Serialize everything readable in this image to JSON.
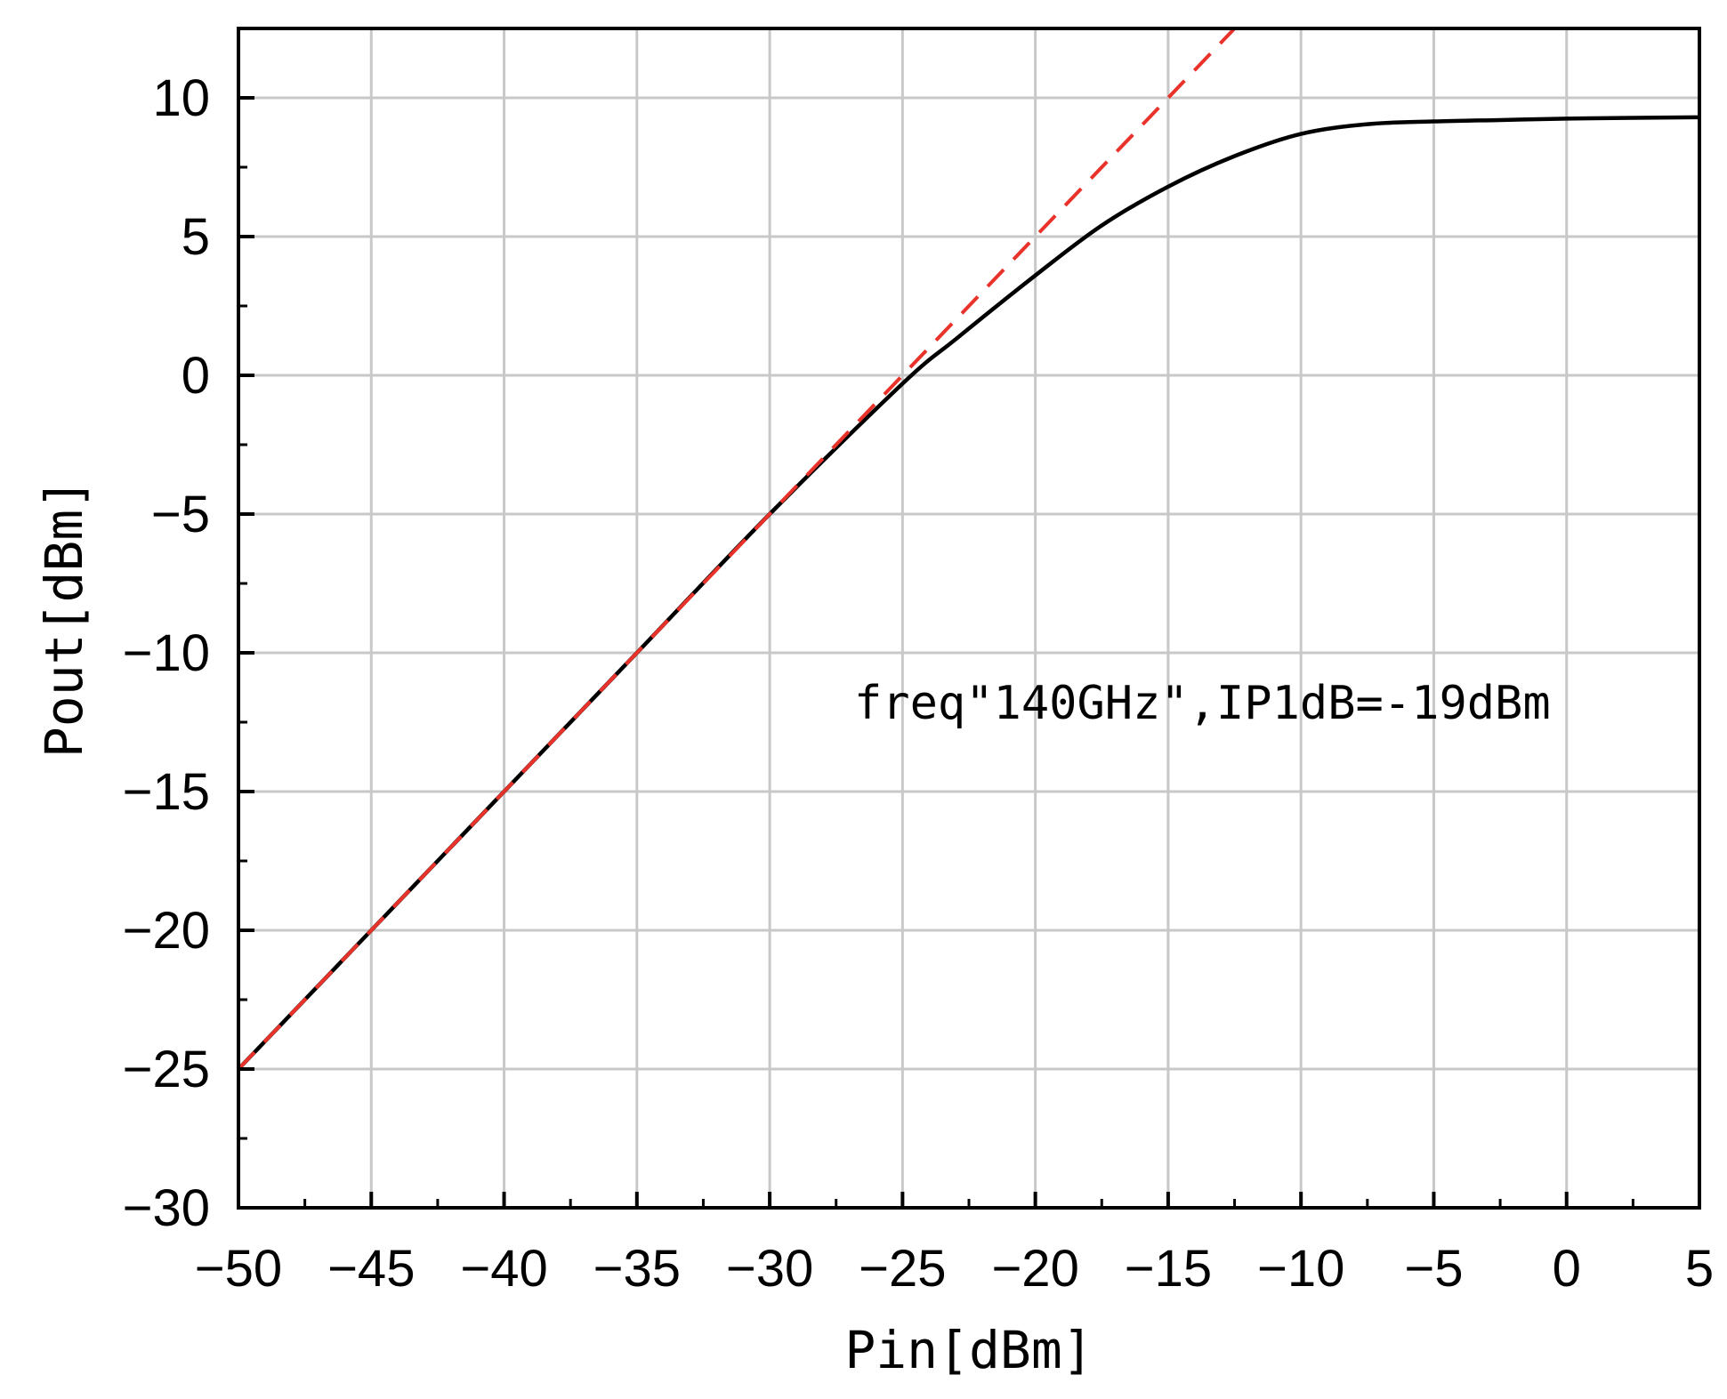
{
  "chart_data": {
    "type": "line",
    "title": "",
    "xlabel": "Pin[dBm]",
    "ylabel": "Pout[dBm]",
    "xlim": [
      -50,
      5
    ],
    "ylim": [
      -30,
      12.5
    ],
    "x_ticks": [
      -50,
      -45,
      -40,
      -35,
      -30,
      -25,
      -20,
      -15,
      -10,
      -5,
      0,
      5
    ],
    "y_ticks": [
      -30,
      -25,
      -20,
      -15,
      -10,
      -5,
      0,
      5,
      10
    ],
    "x_tick_labels": [
      "−50",
      "−45",
      "−40",
      "−35",
      "−30",
      "−25",
      "−20",
      "−15",
      "−10",
      "−5",
      "0",
      "5"
    ],
    "y_tick_labels": [
      "−30",
      "−25",
      "−20",
      "−15",
      "−10",
      "−5",
      "0",
      "5",
      "10"
    ],
    "grid": true,
    "annotation": "freq\"140GHz\",IP1dB=-19dBm",
    "series": [
      {
        "color": "#000000",
        "style": "solid",
        "x": [
          -50,
          -45,
          -40,
          -35,
          -30,
          -25,
          -23,
          -20,
          -17.5,
          -15,
          -12.5,
          -10,
          -7.5,
          -5,
          -2.5,
          0,
          2.5,
          5
        ],
        "y": [
          -25,
          -20,
          -15,
          -10,
          -5,
          -0.3,
          1.3,
          3.6,
          5.4,
          6.8,
          7.9,
          8.7,
          9.05,
          9.15,
          9.2,
          9.25,
          9.28,
          9.3
        ]
      },
      {
        "color": "#e8322a",
        "style": "dashed",
        "x": [
          -50,
          -12.5
        ],
        "y": [
          -25,
          12.5
        ]
      }
    ]
  }
}
